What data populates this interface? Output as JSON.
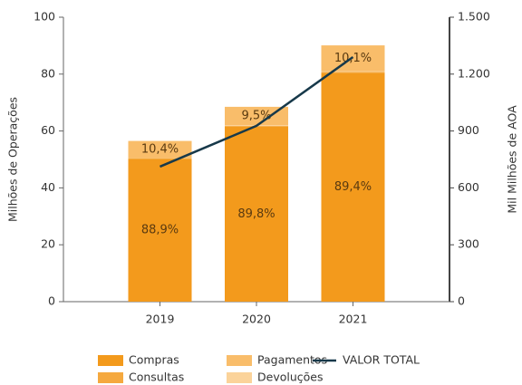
{
  "chart_data": {
    "type": "bar",
    "stacked": true,
    "categories": [
      "2019",
      "2020",
      "2021"
    ],
    "ylabel": "Milhões de Operações",
    "y2label": "Mil Milhões de AOA",
    "ylim": [
      0,
      100
    ],
    "yticks": [
      0,
      20,
      40,
      60,
      80,
      100
    ],
    "y2lim": [
      0,
      1500
    ],
    "y2ticks": [
      0,
      300,
      600,
      900,
      {
        "value": 1200,
        "label": "1.200"
      },
      {
        "value": 1500,
        "label": "1.500"
      }
    ],
    "series": [
      {
        "name": "Compras",
        "color": "#f39a1c",
        "values": [
          50.2,
          61.5,
          80.5
        ],
        "percent_labels": [
          "88,9%",
          "89,8%",
          "89,4%"
        ]
      },
      {
        "name": "Consultas",
        "color": "#f5a93f",
        "values": [
          0.3,
          0.3,
          0.3
        ]
      },
      {
        "name": "Devoluções",
        "color": "#fbd39a",
        "values": [
          0.1,
          0.2,
          0.2
        ]
      },
      {
        "name": "Pagamentos",
        "color": "#f9bd6a",
        "values": [
          5.9,
          6.5,
          9.1
        ],
        "percent_labels": [
          "10,4%",
          "9,5%",
          "10,1%"
        ]
      },
      {
        "name": "VALOR TOTAL",
        "type": "line",
        "axis": "y2",
        "color": "#17394a",
        "values": [
          712,
          927,
          1290
        ]
      }
    ]
  }
}
